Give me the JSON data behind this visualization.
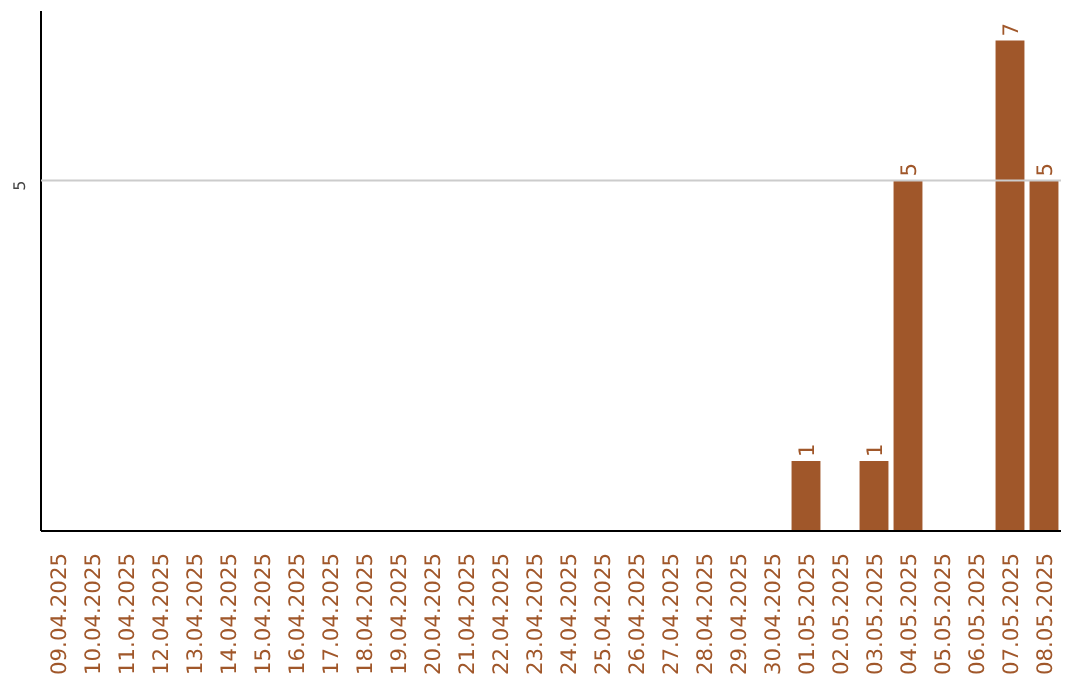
{
  "chart_data": {
    "type": "bar",
    "categories": [
      "09.04.2025",
      "10.04.2025",
      "11.04.2025",
      "12.04.2025",
      "13.04.2025",
      "14.04.2025",
      "15.04.2025",
      "16.04.2025",
      "17.04.2025",
      "18.04.2025",
      "19.04.2025",
      "20.04.2025",
      "21.04.2025",
      "22.04.2025",
      "23.04.2025",
      "24.04.2025",
      "25.04.2025",
      "26.04.2025",
      "27.04.2025",
      "28.04.2025",
      "29.04.2025",
      "30.04.2025",
      "01.05.2025",
      "02.05.2025",
      "03.05.2025",
      "04.05.2025",
      "05.05.2025",
      "06.05.2025",
      "07.05.2025",
      "08.05.2025"
    ],
    "values": [
      null,
      null,
      null,
      null,
      null,
      null,
      null,
      null,
      null,
      null,
      null,
      null,
      null,
      null,
      null,
      null,
      null,
      null,
      null,
      null,
      null,
      null,
      1,
      null,
      1,
      5,
      null,
      null,
      7,
      5
    ],
    "data_labels": true,
    "color": "#a0572a",
    "ref_lines": [
      {
        "axis": "y",
        "value": 5,
        "label": "5",
        "color": "#cccccc"
      }
    ]
  }
}
